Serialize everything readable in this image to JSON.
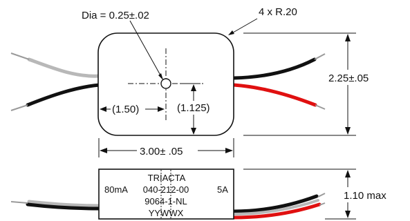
{
  "dimensions": {
    "hole_dia": "Dia = 0.25±.02",
    "corner_radius": "4 x R.20",
    "height": "2.25±.05",
    "hole_x_offset": "(1.50)",
    "hole_y_offset": "(1.125)",
    "width": "3.00± .05",
    "max_thickness": "1.10 max"
  },
  "label": {
    "left": "80mA",
    "right": "5A",
    "lines": [
      "TRIACTA",
      "040-212-00",
      "9064-1-NL",
      "YYWWX"
    ]
  },
  "colors": {
    "wire_black": "#111111",
    "wire_gray": "#b8b8b8",
    "wire_red": "#e01010",
    "wire_tip": "#9a9a9a"
  }
}
